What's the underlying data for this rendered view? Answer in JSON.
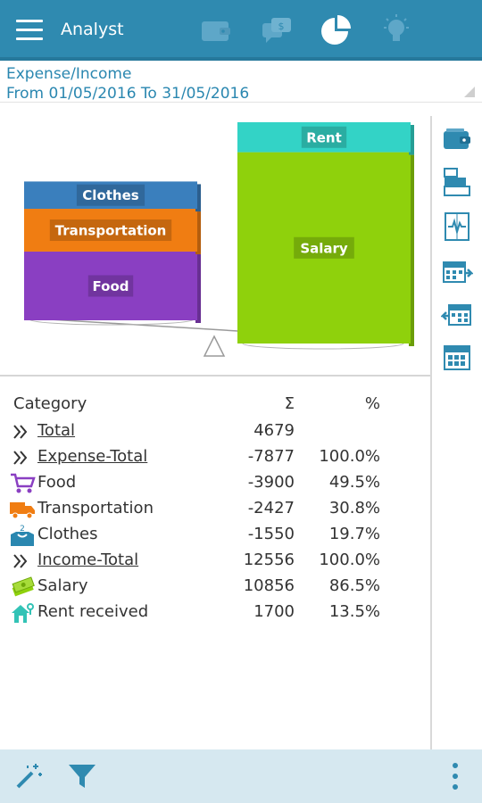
{
  "app": {
    "title": "Analyst"
  },
  "top_nav": {
    "icons": [
      "wallet-icon",
      "transfer-icon",
      "pie-chart-icon",
      "lightbulb-icon"
    ],
    "active": "pie-chart-icon"
  },
  "header": {
    "title": "Expense/Income",
    "period": "From 01/05/2016 To 31/05/2016"
  },
  "balance_chart": {
    "left_stack": [
      {
        "label": "Clothes",
        "value": 1550,
        "color": "#3a7fbd"
      },
      {
        "label": "Transportation",
        "value": 2427,
        "color": "#f07d12"
      },
      {
        "label": "Food",
        "value": 3900,
        "color": "#8a3fc2"
      }
    ],
    "right_stack": [
      {
        "label": "Rent",
        "value": 1700,
        "color": "#33d3c6"
      },
      {
        "label": "Salary",
        "value": 10856,
        "color": "#8fd10c"
      }
    ]
  },
  "table": {
    "headers": {
      "category": "Category",
      "sum": "Σ",
      "percent": "%"
    },
    "rows": [
      {
        "icon": "double-chevron-icon",
        "name": "Total",
        "sum": "4679",
        "percent": "",
        "link": true
      },
      {
        "icon": "double-chevron-icon",
        "name": "Expense-Total",
        "sum": "-7877",
        "percent": "100.0%",
        "link": true
      },
      {
        "icon": "shopping-cart-icon",
        "name": "Food",
        "sum": "-3900",
        "percent": "49.5%",
        "link": false
      },
      {
        "icon": "truck-icon",
        "name": "Transportation",
        "sum": "-2427",
        "percent": "30.8%",
        "link": false
      },
      {
        "icon": "clothes-box-icon",
        "name": "Clothes",
        "sum": "-1550",
        "percent": "19.7%",
        "link": false
      },
      {
        "icon": "double-chevron-icon",
        "name": "Income-Total",
        "sum": "12556",
        "percent": "100.0%",
        "link": true
      },
      {
        "icon": "money-icon",
        "name": "Salary",
        "sum": "10856",
        "percent": "86.5%",
        "link": false
      },
      {
        "icon": "house-icon",
        "name": "Rent received",
        "sum": "1700",
        "percent": "13.5%",
        "link": false
      }
    ]
  },
  "side_toolbar": {
    "icons": [
      "wallet-icon",
      "stack-icon",
      "compare-icon",
      "calendar-next-icon",
      "calendar-prev-icon",
      "calendar-icon"
    ]
  },
  "bottom_bar": {
    "icons": [
      "magic-wand-icon",
      "filter-icon",
      "more-vert-icon"
    ]
  }
}
